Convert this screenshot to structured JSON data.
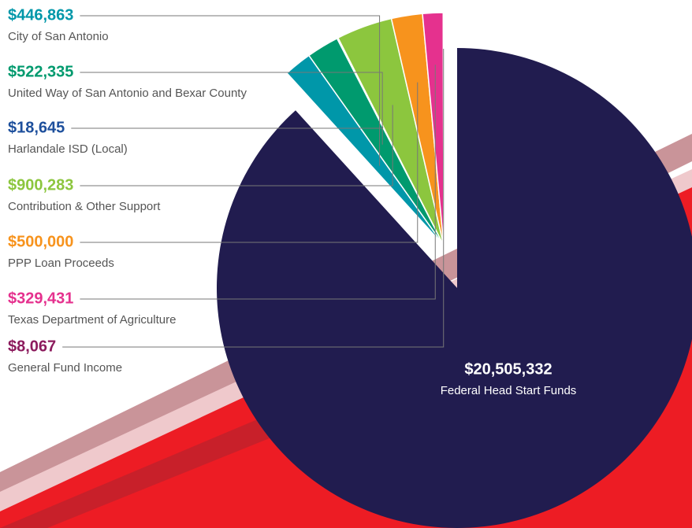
{
  "chart_data": {
    "type": "pie",
    "categories": [
      "City of San Antonio",
      "United Way of San Antonio and Bexar County",
      "Harlandale ISD (Local)",
      "Contribution & Other Support",
      "PPP Loan Proceeds",
      "Texas Department of Agriculture",
      "General Fund Income",
      "Federal Head Start Funds"
    ],
    "values": [
      446863,
      522335,
      18645,
      900283,
      500000,
      329431,
      8067,
      20505332
    ],
    "value_labels": [
      "$446,863",
      "$522,335",
      "$18,645",
      "$900,283",
      "$500,000",
      "$329,431",
      "$8,067",
      "$20,505,332"
    ],
    "colors": [
      "#0097a9",
      "#009a6e",
      "#1d4f9c",
      "#8cc63e",
      "#f7931d",
      "#e5318e",
      "#8c1b5d",
      "#211c4f"
    ]
  }
}
